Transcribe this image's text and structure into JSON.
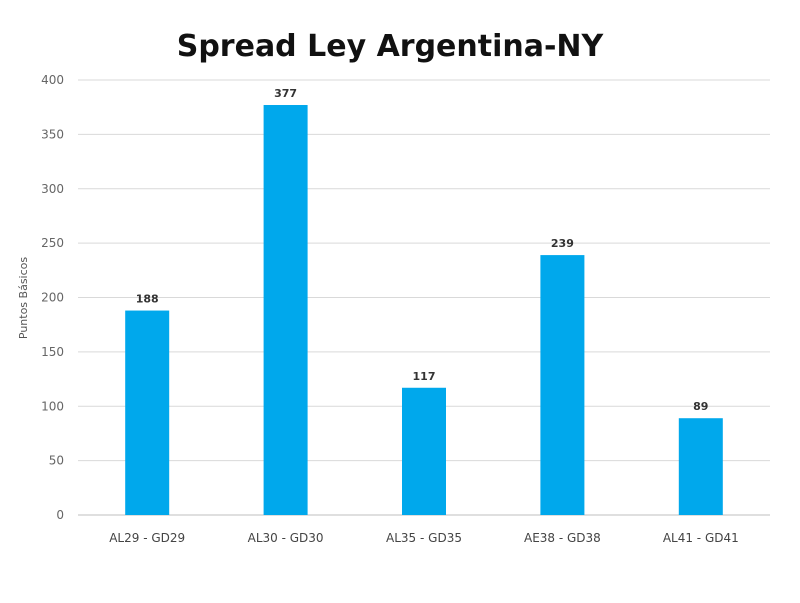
{
  "chart_data": {
    "type": "bar",
    "title": "Spread Ley Argentina-NY",
    "ylabel": "Puntos Básicos",
    "xlabel": "",
    "ylim": [
      0,
      400
    ],
    "yticks": [
      0,
      50,
      100,
      150,
      200,
      250,
      300,
      350,
      400
    ],
    "grid": true,
    "categories": [
      "AL29 - GD29",
      "AL30 - GD30",
      "AL35 - GD35",
      "AE38 - GD38",
      "AL41 - GD41"
    ],
    "values": [
      188,
      377,
      117,
      239,
      89
    ],
    "data_labels": [
      "188",
      "377",
      "117",
      "239",
      "89"
    ],
    "bar_color": "#00a8ec"
  }
}
